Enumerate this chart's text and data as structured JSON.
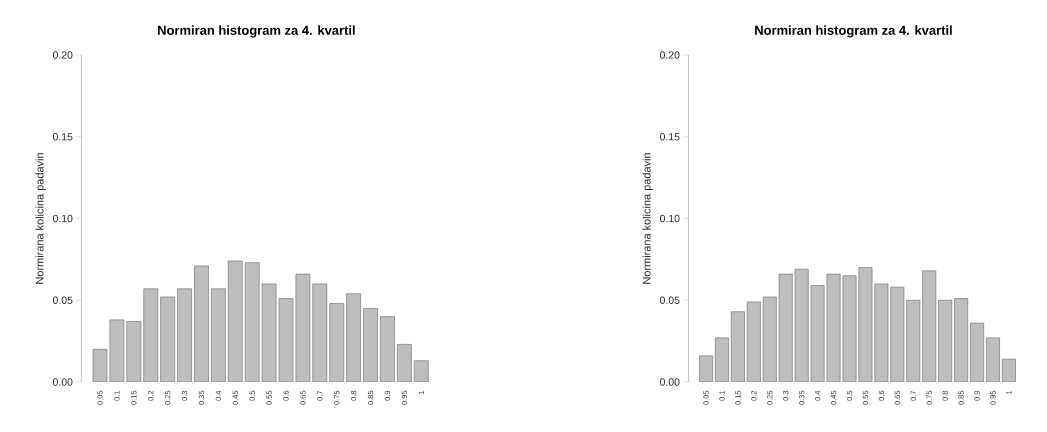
{
  "chart_data": [
    {
      "type": "bar",
      "title": "Normiran histogram za 4. kvartil",
      "ylabel": "Normirana kolicina padavin",
      "color": "#bebebe",
      "categories": [
        "0.05",
        "0.1",
        "0.15",
        "0.2",
        "0.25",
        "0.3",
        "0.35",
        "0.4",
        "0.45",
        "0.5",
        "0.55",
        "0.6",
        "0.65",
        "0.7",
        "0.75",
        "0.8",
        "0.85",
        "0.9",
        "0.95",
        "1"
      ],
      "values": [
        0.02,
        0.038,
        0.037,
        0.057,
        0.052,
        0.057,
        0.071,
        0.057,
        0.074,
        0.073,
        0.06,
        0.051,
        0.066,
        0.06,
        0.048,
        0.054,
        0.045,
        0.04,
        0.023,
        0.013
      ],
      "ylim": [
        0,
        0.2
      ],
      "yticks": [
        {
          "value": 0,
          "label": "0.00"
        },
        {
          "value": 0.05,
          "label": "0.05"
        },
        {
          "value": 0.1,
          "label": "0.10"
        },
        {
          "value": 0.15,
          "label": "0.15"
        },
        {
          "value": 0.2,
          "label": "0.20"
        }
      ]
    },
    {
      "type": "bar",
      "title": "Normiran histogram za 4. kvartil",
      "ylabel": "Normirana kolicina padavin",
      "color": "#bebebe",
      "categories": [
        "0.05",
        "0.1",
        "0.15",
        "0.2",
        "0.25",
        "0.3",
        "0.35",
        "0.4",
        "0.45",
        "0.5",
        "0.55",
        "0.6",
        "0.65",
        "0.7",
        "0.75",
        "0.8",
        "0.85",
        "0.9",
        "0.95",
        "1"
      ],
      "values": [
        0.016,
        0.027,
        0.043,
        0.049,
        0.052,
        0.066,
        0.069,
        0.059,
        0.066,
        0.065,
        0.07,
        0.06,
        0.058,
        0.05,
        0.068,
        0.05,
        0.051,
        0.036,
        0.027,
        0.014
      ],
      "ylim": [
        0,
        0.2
      ],
      "yticks": [
        {
          "value": 0,
          "label": "0.00"
        },
        {
          "value": 0.05,
          "label": "0.05"
        },
        {
          "value": 0.1,
          "label": "0.10"
        },
        {
          "value": 0.15,
          "label": "0.15"
        },
        {
          "value": 0.2,
          "label": "0.20"
        }
      ]
    }
  ]
}
